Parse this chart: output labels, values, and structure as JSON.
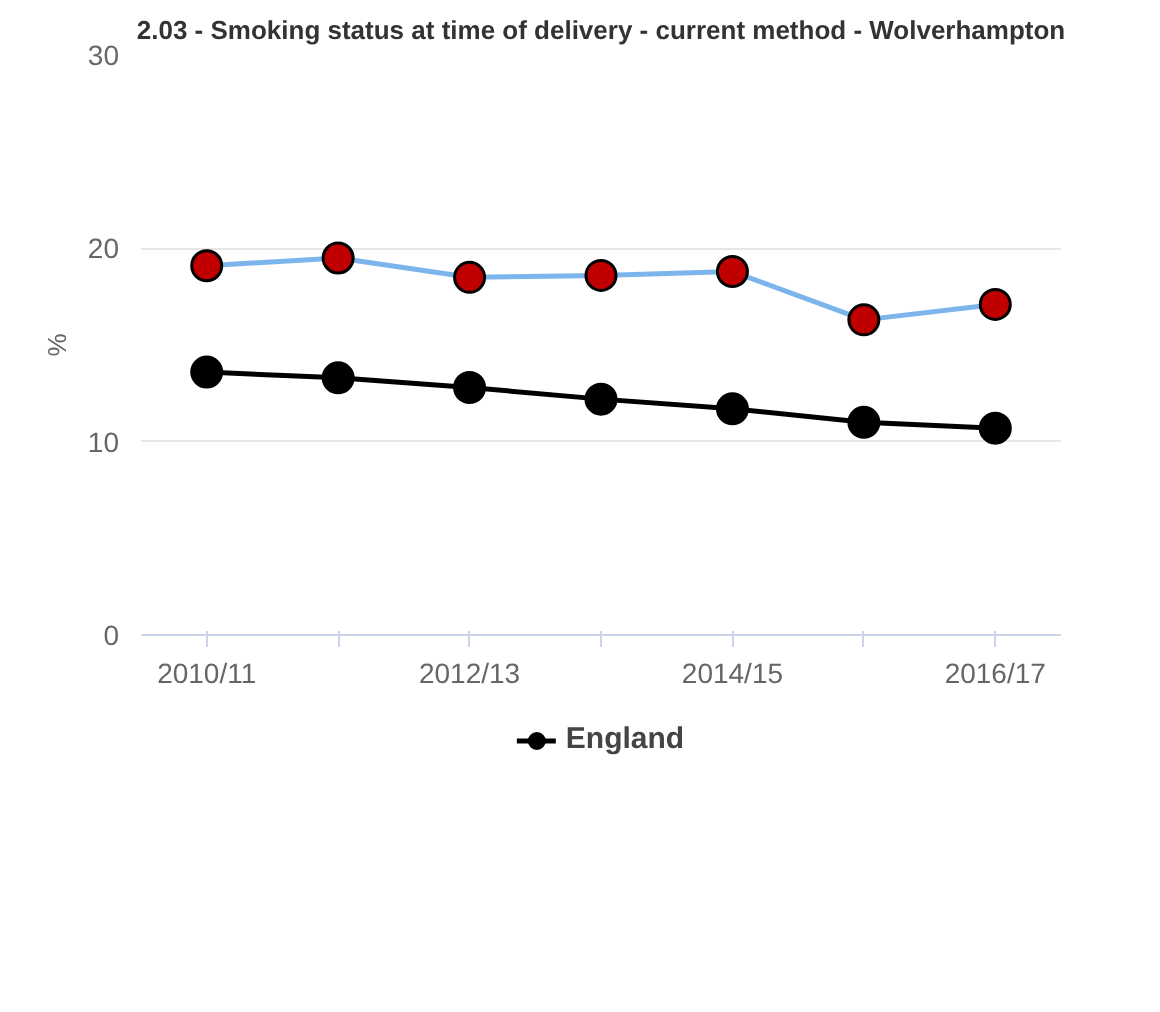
{
  "chart_data": {
    "type": "line",
    "title": "2.03 - Smoking status at time of delivery - current method - Wolverhampton",
    "ylabel": "%",
    "categories": [
      "2010/11",
      null,
      "2012/13",
      null,
      "2014/15",
      null,
      "2016/17"
    ],
    "series": [
      {
        "color": "#7cb5ec",
        "colors": [
          "#c00000",
          "#c00000",
          "#c00000",
          "#c00000",
          "#c00000",
          "#c00000",
          "#c00000"
        ],
        "values": [
          19.1,
          19.5,
          18.5,
          18.6,
          18.8,
          16.3,
          17.1
        ]
      },
      {
        "name": "England",
        "color": "#000000",
        "values": [
          13.6,
          13.3,
          12.8,
          12.2,
          11.7,
          11.0,
          10.7
        ]
      }
    ],
    "ylim": [
      0,
      30
    ],
    "yticks": [
      0,
      10,
      20,
      30
    ],
    "grid": "y",
    "legend": "bottom",
    "marker": "circle",
    "line_style": "solid"
  }
}
